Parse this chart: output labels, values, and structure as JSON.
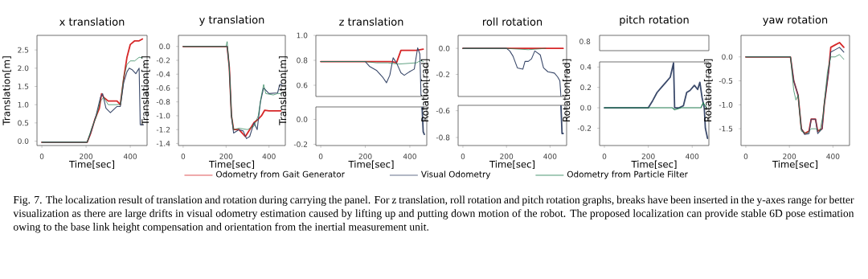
{
  "chart_data": [
    {
      "type": "line",
      "title": "x translation",
      "xlabel": "Time[sec]",
      "ylabel": "Translation[m]",
      "xlim": [
        -22,
        476
      ],
      "ylim": [
        -0.12,
        2.9
      ],
      "xticks": [
        0,
        200,
        400
      ],
      "yticks": [
        {
          "value": 0,
          "label": "0.0"
        },
        0.5,
        {
          "value": 1,
          "label": "1.0"
        },
        1.5,
        {
          "value": 2,
          "label": "2.0"
        },
        2.5
      ],
      "legend": "bottom",
      "annotations": [
        "Fig. 7.   The localization result of translation and rotation during carrying the panel. For z translation, roll rotation and pitch rotation graphs, breaks have been inserted in the y-axes range for better visualization as there are large drifts in visual odometry estimation caused by lifting up and putting down motion of the robot. The proposed localization can provide stable 6D pose estimation owing to the base link height compensation and orientation from the inertial measurement unit."
      ],
      "series": [
        {
          "name": "Odometry from Gait Generator",
          "color": "#d62728",
          "x": [
            0,
            205,
            220,
            240,
            260,
            270,
            280,
            300,
            340,
            355,
            370,
            385,
            400,
            420,
            440,
            455
          ],
          "values": [
            -0.03,
            -0.03,
            0.2,
            0.6,
            0.9,
            1.3,
            1.2,
            1.1,
            1.1,
            1.0,
            1.7,
            2.3,
            2.65,
            2.75,
            2.75,
            2.8
          ]
        },
        {
          "name": "Visual Odometry",
          "color": "#3b4a6b",
          "x": [
            0,
            205,
            225,
            245,
            265,
            275,
            290,
            310,
            340,
            355,
            370,
            385,
            395,
            410,
            425,
            440,
            445,
            460
          ],
          "values": [
            -0.03,
            -0.03,
            0.3,
            0.7,
            1.2,
            1.3,
            0.9,
            0.78,
            0.95,
            0.95,
            1.6,
            1.9,
            2.0,
            1.95,
            1.85,
            2.0,
            0.45,
            0.45
          ]
        },
        {
          "name": "Odometry from Particle Filter",
          "color": "#1e7b4e",
          "x": [
            0,
            205,
            225,
            245,
            265,
            280,
            300,
            340,
            355,
            370,
            385,
            400,
            420,
            440,
            455
          ],
          "values": [
            -0.03,
            -0.03,
            0.35,
            0.65,
            1.1,
            1.2,
            1.0,
            1.0,
            1.0,
            1.75,
            2.1,
            2.2,
            2.2,
            2.3,
            2.28
          ]
        }
      ]
    },
    {
      "type": "line",
      "title": "y translation",
      "xlabel": "Time[sec]",
      "ylabel": "Translation[m]",
      "xlim": [
        -22,
        476
      ],
      "ylim": [
        -1.43,
        0.16
      ],
      "xticks": [
        0,
        200,
        400
      ],
      "yticks": [
        -1.4,
        -1.2,
        {
          "value": -1,
          "label": "-1.0"
        },
        -0.8,
        -0.6,
        -0.4,
        -0.2,
        {
          "value": 0,
          "label": "0.0"
        }
      ],
      "series": [
        {
          "color": "#d62728",
          "x": [
            0,
            205,
            215,
            225,
            235,
            260,
            290,
            310,
            330,
            350,
            365,
            380,
            400,
            455
          ],
          "values": [
            0,
            0,
            -0.3,
            -1.0,
            -1.2,
            -1.2,
            -1.3,
            -1.2,
            -1.1,
            -1.05,
            -1.0,
            -0.92,
            -0.93,
            -0.93
          ]
        },
        {
          "color": "#3b4a6b",
          "x": [
            0,
            205,
            215,
            225,
            235,
            260,
            280,
            295,
            310,
            330,
            345,
            360,
            375,
            400,
            440,
            450,
            460
          ],
          "values": [
            0,
            0,
            -0.3,
            -1.0,
            -1.25,
            -1.2,
            -1.22,
            -1.33,
            -1.3,
            -1.1,
            -1.2,
            -0.8,
            -0.6,
            -0.68,
            -0.67,
            -0.55,
            -0.55
          ]
        },
        {
          "color": "#1e7b4e",
          "x": [
            0,
            200,
            205,
            215,
            225,
            235,
            260,
            300,
            330,
            350,
            365,
            375,
            385,
            420,
            440,
            455
          ],
          "values": [
            0,
            0,
            0.07,
            -0.3,
            -1.0,
            -1.2,
            -1.18,
            -1.2,
            -1.15,
            -1.0,
            -0.7,
            -0.55,
            -0.68,
            -0.7,
            -0.68,
            -0.68
          ]
        }
      ]
    },
    {
      "type": "line",
      "title": "z translation",
      "xlim": [
        -22,
        476
      ],
      "ylim": [
        0.51,
        1.0
      ],
      "xticks": [
        0,
        200,
        400
      ],
      "yticks": [
        0.6,
        0.8,
        {
          "value": 1,
          "label": "1.0"
        }
      ],
      "tick_labels": "y",
      "series": [
        {
          "color": "#d62728",
          "x": [
            0,
            320,
            340,
            360,
            430,
            460
          ],
          "values": [
            0.79,
            0.79,
            0.78,
            0.88,
            0.88,
            0.89
          ]
        },
        {
          "color": "#3b4a6b",
          "x": [
            0,
            200,
            220,
            250,
            280,
            295,
            310,
            325,
            340,
            360,
            375,
            400,
            420,
            435,
            445,
            450
          ],
          "values": [
            0.79,
            0.79,
            0.75,
            0.72,
            0.66,
            0.62,
            0.68,
            0.82,
            0.78,
            0.7,
            0.68,
            0.71,
            0.73,
            0.9,
            0.85,
            0.52
          ]
        },
        {
          "color": "#1e7b4e",
          "x": [
            0,
            200,
            250,
            300,
            350,
            430,
            450,
            460
          ],
          "values": [
            0.79,
            0.79,
            0.78,
            0.78,
            0.77,
            0.78,
            0.8,
            0.79
          ]
        }
      ]
    },
    {
      "type": "line",
      "xlabel": "Time[sec]",
      "ylabel": "Translation[m]",
      "xlim": [
        -22,
        476
      ],
      "ylim": [
        -0.21,
        0.1
      ],
      "xticks": [
        0,
        200,
        400
      ],
      "yticks": [
        -0.2,
        {
          "value": 0,
          "label": "0.0"
        }
      ],
      "series": [
        {
          "color": "#3b4a6b",
          "x": [
            455,
            460,
            465
          ],
          "values": [
            0.1,
            -0.1,
            -0.12
          ]
        }
      ]
    },
    {
      "type": "line",
      "title": "roll rotation",
      "xlim": [
        -22,
        476
      ],
      "ylim": [
        -0.37,
        0.1
      ],
      "xticks": [
        0,
        200,
        400
      ],
      "yticks": [
        -0.2,
        {
          "value": 0,
          "label": "0.0"
        }
      ],
      "tick_labels": "y",
      "series": [
        {
          "color": "#d62728",
          "x": [
            0,
            460
          ],
          "values": [
            0,
            0
          ]
        },
        {
          "color": "#3b4a6b",
          "x": [
            0,
            200,
            215,
            230,
            250,
            275,
            285,
            300,
            315,
            330,
            355,
            370,
            390,
            420,
            435,
            445,
            450
          ],
          "values": [
            0,
            0,
            -0.02,
            -0.06,
            -0.15,
            -0.16,
            -0.1,
            -0.1,
            -0.08,
            -0.02,
            -0.05,
            -0.15,
            -0.18,
            -0.19,
            -0.22,
            -0.25,
            -0.37
          ]
        },
        {
          "color": "#1e7b4e",
          "x": [
            0,
            200,
            300,
            380
          ],
          "values": [
            0,
            0,
            -0.01,
            0
          ]
        }
      ]
    },
    {
      "type": "line",
      "xlabel": "Time[sec]",
      "ylabel": "Rotation[rad]",
      "xlim": [
        -22,
        476
      ],
      "ylim": [
        -0.86,
        -0.56
      ],
      "xticks": [
        0,
        200,
        400
      ],
      "yticks": [
        -0.8,
        -0.6
      ],
      "series": [
        {
          "color": "#3b4a6b",
          "x": [
            450,
            455,
            460
          ],
          "values": [
            -0.56,
            -0.77,
            -0.77
          ]
        }
      ]
    },
    {
      "type": "other",
      "title": "pitch rotation",
      "annotations": [
        "0.8"
      ]
    },
    {
      "type": "line",
      "xlabel": "Time[sec]",
      "ylabel": "Rotation[rad]",
      "xlim": [
        -22,
        476
      ],
      "ylim": [
        -0.37,
        0.45
      ],
      "xticks": [
        0,
        200,
        400
      ],
      "yticks": [
        -0.2,
        {
          "value": 0,
          "label": "0.0"
        },
        0.2,
        0.4
      ],
      "series": [
        {
          "color": "#3b4a6b",
          "x": [
            0,
            200,
            220,
            240,
            260,
            280,
            300,
            315,
            320,
            340,
            360,
            375,
            390,
            410,
            425,
            435,
            445,
            455,
            460,
            470
          ],
          "values": [
            0,
            0,
            0.07,
            0.15,
            0.2,
            0.25,
            0.3,
            0.44,
            0,
            0,
            0.02,
            0.15,
            0.17,
            0.22,
            0.18,
            0.25,
            0.1,
            0,
            -0.2,
            -0.3
          ]
        },
        {
          "color": "#1e7b4e",
          "x": [
            0,
            310,
            320,
            350,
            440,
            450,
            465
          ],
          "values": [
            0,
            0,
            -0.02,
            0,
            0,
            0.05,
            0
          ]
        }
      ]
    },
    {
      "type": "line",
      "title": "yaw rotation",
      "xlabel": "Time[sec]",
      "ylabel": "Rotation[rad]",
      "xlim": [
        -22,
        476
      ],
      "ylim": [
        -1.85,
        0.45
      ],
      "xticks": [
        0,
        200,
        400
      ],
      "yticks": [
        -1.5,
        {
          "value": -1,
          "label": "-1.0"
        },
        -0.5,
        {
          "value": 0,
          "label": "0.0"
        }
      ],
      "series": [
        {
          "color": "#d62728",
          "x": [
            0,
            205,
            220,
            240,
            255,
            270,
            290,
            300,
            320,
            330,
            350,
            360,
            380,
            390,
            410,
            430,
            450
          ],
          "values": [
            0,
            0,
            -0.5,
            -0.8,
            -1.5,
            -1.6,
            -1.55,
            -1.3,
            -1.3,
            -1.55,
            -1.5,
            -1.0,
            -0.3,
            0.2,
            0.25,
            0.3,
            0.2
          ]
        },
        {
          "color": "#3b4a6b",
          "x": [
            0,
            205,
            220,
            240,
            255,
            270,
            290,
            300,
            320,
            330,
            350,
            360,
            380,
            390,
            410,
            430,
            450
          ],
          "values": [
            0,
            0,
            -0.5,
            -0.8,
            -1.5,
            -1.62,
            -1.6,
            -1.3,
            -1.3,
            -1.6,
            -1.5,
            -1.0,
            -0.3,
            0.1,
            0.15,
            0.2,
            0.1
          ]
        },
        {
          "color": "#1e7b4e",
          "x": [
            0,
            205,
            220,
            230,
            240,
            255,
            280,
            300,
            320,
            340,
            355,
            375,
            390,
            410,
            430,
            450
          ],
          "values": [
            0,
            0,
            -0.7,
            -0.9,
            -0.8,
            -1.55,
            -1.6,
            -1.5,
            -1.5,
            -1.55,
            -1.2,
            -0.3,
            0,
            0,
            0.05,
            -0.05
          ]
        }
      ]
    }
  ]
}
